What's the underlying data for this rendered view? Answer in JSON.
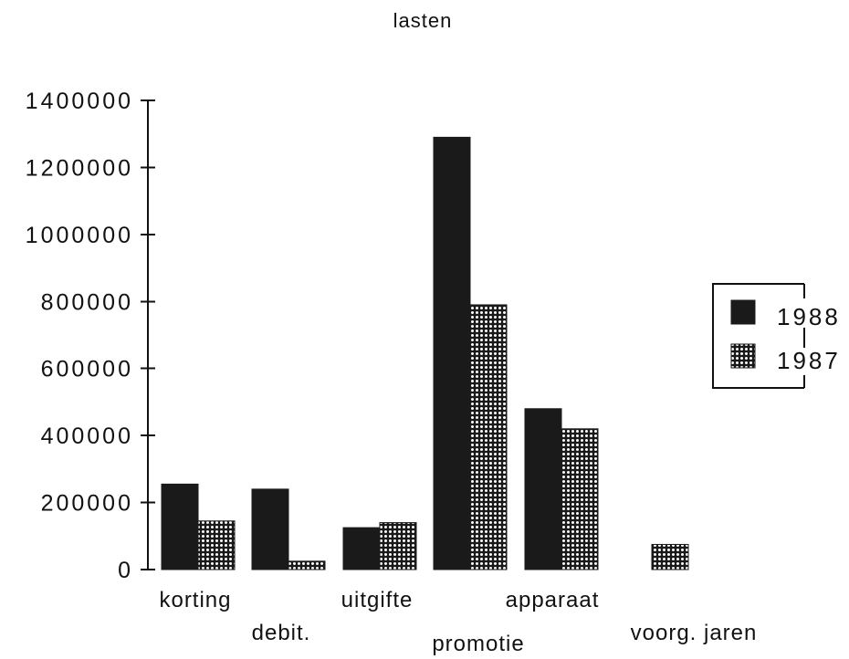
{
  "chart_data": {
    "type": "bar",
    "title": "lasten",
    "xlabel": "",
    "ylabel": "",
    "categories": [
      "korting",
      "debit.",
      "uitgifte",
      "promotie",
      "apparaat",
      "voorg. jaren"
    ],
    "series": [
      {
        "name": "1988",
        "values": [
          255000,
          240000,
          125000,
          1290000,
          480000,
          null
        ],
        "color": "#1a1a1a",
        "pattern": "solid"
      },
      {
        "name": "1987",
        "values": [
          145000,
          25000,
          140000,
          790000,
          420000,
          75000
        ],
        "color": "#1a1a1a",
        "pattern": "dotted"
      }
    ],
    "ylim": [
      0,
      1400000
    ],
    "yticks": [
      "0",
      "200000",
      "400000",
      "600000",
      "800000",
      "1000000",
      "1200000",
      "1400000"
    ],
    "ytick_values": [
      0,
      200000,
      400000,
      600000,
      800000,
      1000000,
      1200000,
      1400000
    ],
    "grid": false,
    "legend_position": "right"
  },
  "colors": {
    "bar_dark": "#1a1a1a",
    "dot": "#ffffff",
    "axis": "#111111"
  }
}
